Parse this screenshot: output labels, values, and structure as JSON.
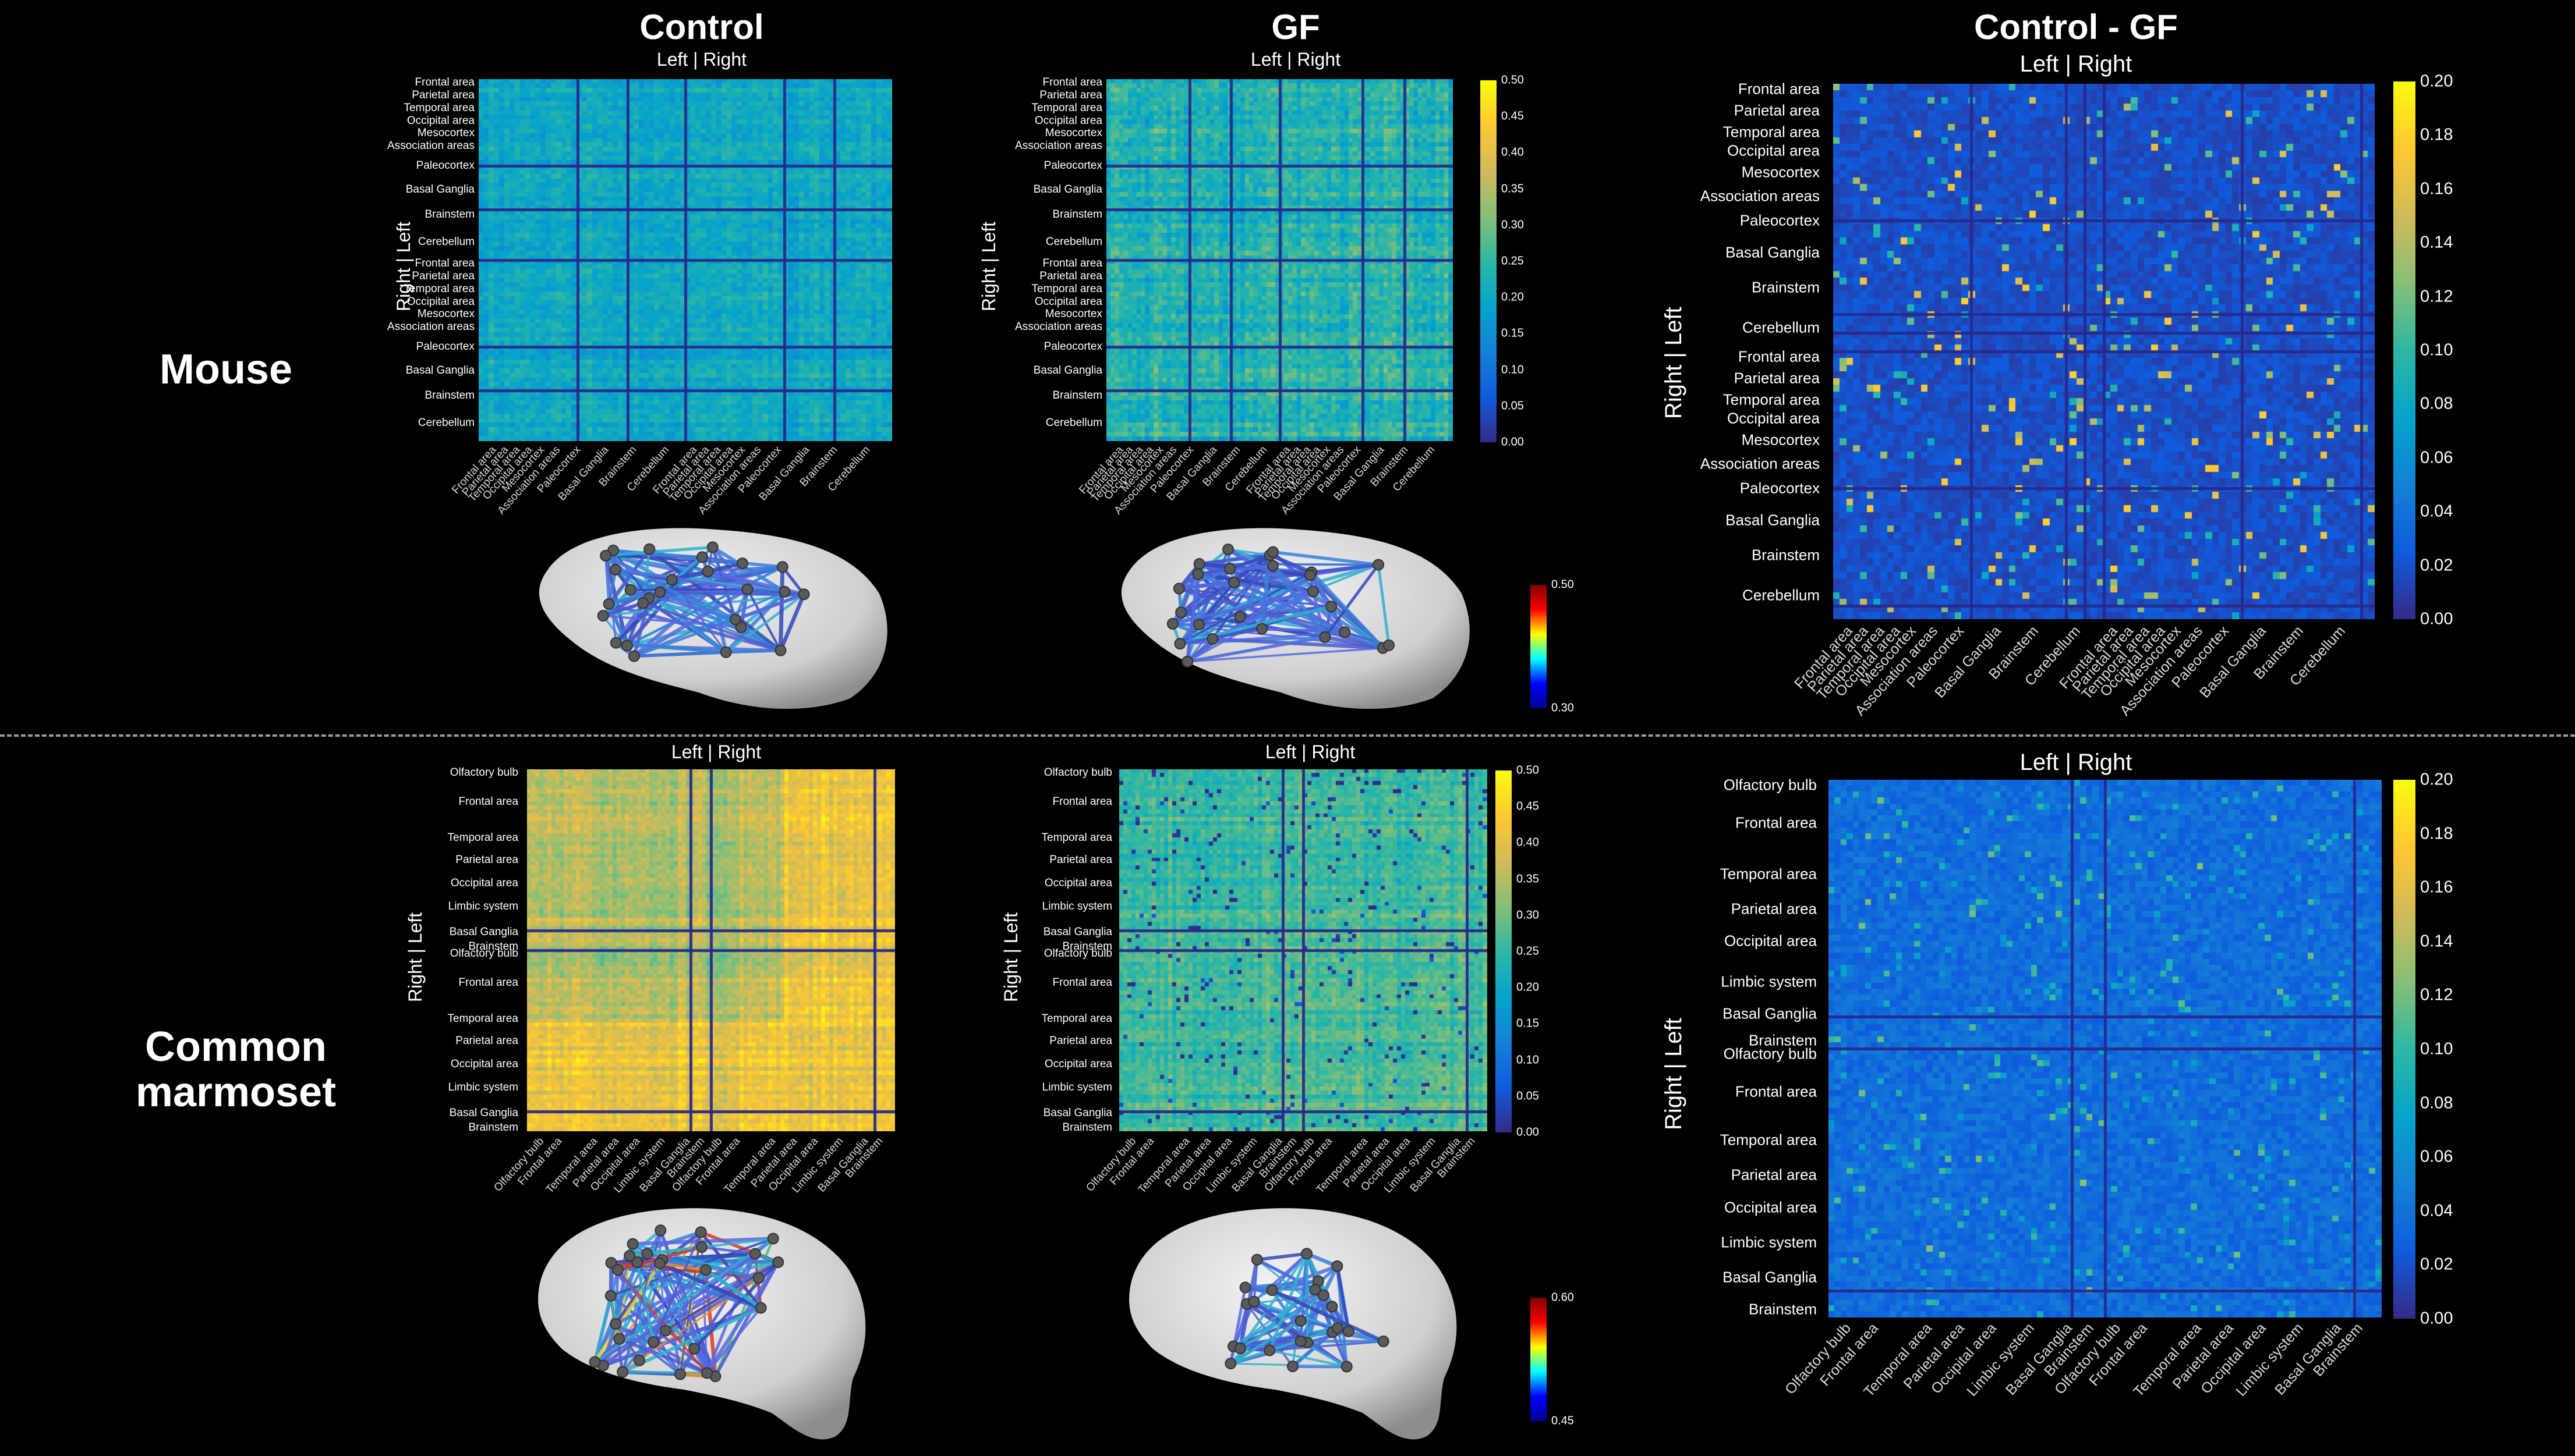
{
  "columns": {
    "control": "Control",
    "gf": "GF",
    "diff": "Control - GF"
  },
  "left_right": "Left  |  Right",
  "right_left": "Right  |  Left",
  "species": {
    "mouse": "Mouse",
    "marmoset_line1": "Common",
    "marmoset_line2": "marmoset"
  },
  "mouse_regions": [
    "Frontal area",
    "Parietal area",
    "Temporal area",
    "Occipital area",
    "Mesocortex",
    "Association areas",
    "Paleocortex",
    "Basal Ganglia",
    "Brainstem",
    "Cerebellum"
  ],
  "marmoset_regions": [
    "Olfactory bulb",
    "Frontal area",
    "Temporal area",
    "Parietal area",
    "Occipital area",
    "Limbic system",
    "Basal Ganglia",
    "Brainstem"
  ],
  "colorbars": {
    "mouse_matrix": [
      "0.50",
      "0.45",
      "0.40",
      "0.35",
      "0.30",
      "0.25",
      "0.20",
      "0.15",
      "0.10",
      "0.05",
      "0.00"
    ],
    "mouse_diff": [
      "0.20",
      "0.18",
      "0.16",
      "0.14",
      "0.12",
      "0.10",
      "0.08",
      "0.06",
      "0.04",
      "0.02",
      "0.00"
    ],
    "mouse_edges": [
      "0.50",
      "0.30"
    ],
    "marm_matrix": [
      "0.50",
      "0.45",
      "0.40",
      "0.35",
      "0.30",
      "0.25",
      "0.20",
      "0.15",
      "0.10",
      "0.05",
      "0.00"
    ],
    "marm_diff": [
      "0.20",
      "0.18",
      "0.16",
      "0.14",
      "0.12",
      "0.10",
      "0.08",
      "0.06",
      "0.04",
      "0.02",
      "0.00"
    ],
    "marm_edges": [
      "0.60",
      "0.45"
    ]
  },
  "colors": {
    "background": "#000000",
    "divider": "#9a9a9a",
    "parula_low": "#352a87",
    "parula_mid": "#12b1c0",
    "parula_high": "#f9fb0e",
    "brain": "#d9d9d9"
  }
}
